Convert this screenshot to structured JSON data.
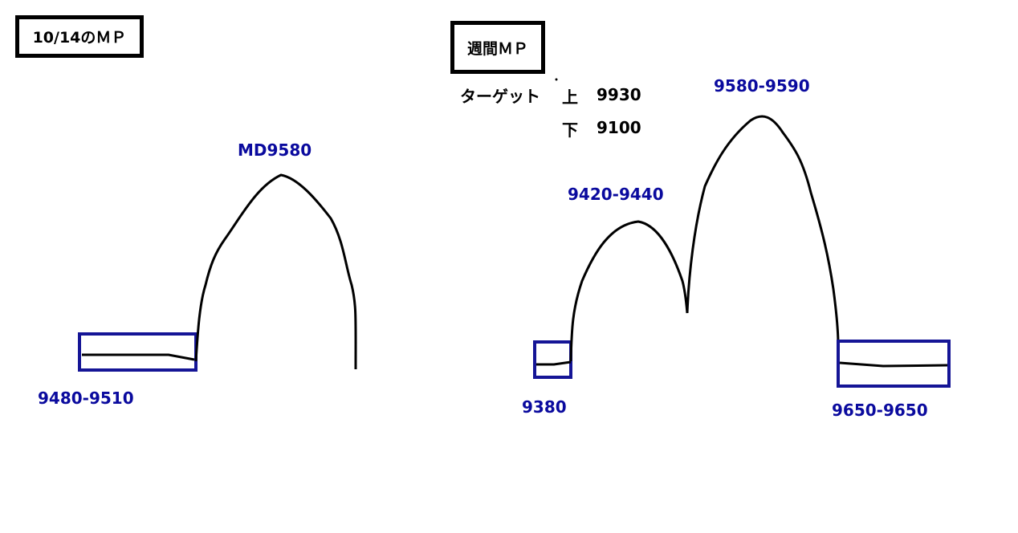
{
  "left_panel": {
    "title": "10/14のＭＰ",
    "peak_label": "MD9580",
    "range_label": "9480-9510"
  },
  "right_panel": {
    "title": "週間ＭＰ",
    "target_label": "ターゲット",
    "upper_label": "上",
    "upper_value": "9930",
    "lower_label": "下",
    "lower_value": "9100",
    "left_low_label": "9380",
    "first_peak_label": "9420-9440",
    "second_peak_label": "9580-9590",
    "right_low_label": "9650-9650"
  },
  "colors": {
    "box_stroke": "#151596",
    "label": "#0a0a9e",
    "curve": "#000000"
  }
}
